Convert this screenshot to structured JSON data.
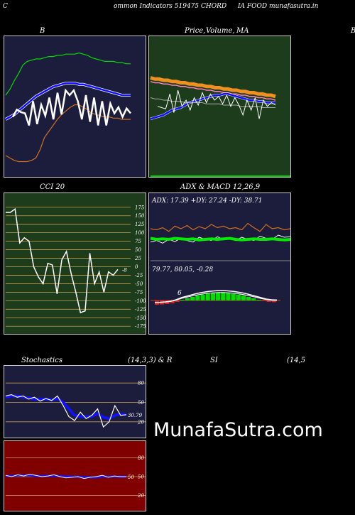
{
  "header": {
    "c": "C",
    "left": "ommon  Indicators 519475 CHORD",
    "right": "IA FOOD munafasutra.in"
  },
  "titles": {
    "bb": "B",
    "price_a": "Price,",
    "price_b": "Volume,",
    "price_c": "MA",
    "right_edge": "B",
    "cci": "CCI 20",
    "adx_macd": "ADX  & MACD 12,26,9",
    "stoch": "Stochastics",
    "stoch_params": "(14,3,3) & R",
    "si": "SI",
    "si_params": "(14,5"
  },
  "colors": {
    "navy": "#1c1c3c",
    "green_panel": "#1c3c1c",
    "dark_red": "#800000",
    "orange": "#d07020",
    "blue": "#1010ff",
    "lime": "#00ff00",
    "grid": "#c8a050"
  },
  "adx_text": "ADX: 17.39  +DY: 27.24  -DY: 38.71",
  "macd_text": "79.77,  80.05,  -0.28",
  "macd_marker": "6",
  "cci_last_label": "-8",
  "stoch_last_label": "30.79",
  "rsi_last_label": "50",
  "watermark": "MunafaSutra.com",
  "chart_data": [
    {
      "type": "line",
      "title": "B",
      "series": [
        {
          "values": [
            0.42,
            0.48,
            0.46,
            0.45,
            0.35,
            0.55,
            0.36,
            0.52,
            0.43,
            0.58,
            0.4,
            0.62,
            0.44,
            0.64,
            0.6,
            0.64,
            0.55,
            0.4,
            0.6,
            0.38,
            0.58,
            0.35,
            0.55,
            0.35,
            0.53,
            0.45,
            0.5,
            0.42,
            0.49,
            0.45
          ]
        },
        {
          "values": [
            0.4,
            0.42,
            0.44,
            0.47,
            0.5,
            0.53,
            0.56,
            0.59,
            0.61,
            0.63,
            0.65,
            0.67,
            0.68,
            0.69,
            0.7,
            0.7,
            0.7,
            0.69,
            0.69,
            0.68,
            0.67,
            0.66,
            0.65,
            0.64,
            0.63,
            0.62,
            0.61,
            0.6,
            0.6,
            0.6
          ]
        },
        {
          "values": [
            0.6,
            0.65,
            0.72,
            0.78,
            0.85,
            0.88,
            0.89,
            0.9,
            0.9,
            0.91,
            0.92,
            0.92,
            0.93,
            0.93,
            0.94,
            0.94,
            0.94,
            0.95,
            0.94,
            0.93,
            0.91,
            0.9,
            0.89,
            0.88,
            0.88,
            0.88,
            0.87,
            0.87,
            0.86,
            0.86
          ]
        },
        {
          "values": [
            0.1,
            0.08,
            0.06,
            0.05,
            0.05,
            0.05,
            0.06,
            0.08,
            0.15,
            0.25,
            0.3,
            0.35,
            0.4,
            0.44,
            0.47,
            0.5,
            0.52,
            0.52,
            0.5,
            0.48,
            0.45,
            0.44,
            0.43,
            0.42,
            0.42,
            0.41,
            0.41,
            0.4,
            0.4,
            0.4
          ]
        }
      ]
    },
    {
      "type": "line",
      "title": "Price, Volume, MA",
      "series": [
        {
          "values": [
            0.78,
            0.77,
            0.77,
            0.76,
            0.76,
            0.75,
            0.75,
            0.74,
            0.74,
            0.73,
            0.73,
            0.72,
            0.72,
            0.71,
            0.71,
            0.7,
            0.7,
            0.69,
            0.69,
            0.68,
            0.68,
            0.67,
            0.67,
            0.66,
            0.66,
            0.65,
            0.65,
            0.64,
            0.64,
            0.63
          ]
        },
        {
          "values": [
            0.75,
            0.74,
            0.74,
            0.73,
            0.73,
            0.72,
            0.72,
            0.71,
            0.71,
            0.7,
            0.7,
            0.69,
            0.69,
            0.68,
            0.68,
            0.67,
            0.67,
            0.66,
            0.66,
            0.65,
            0.65,
            0.64,
            0.64,
            0.63,
            0.63,
            0.62,
            0.62,
            0.61,
            0.61,
            0.6
          ]
        },
        {
          "values": [
            0.45,
            0.46,
            0.47,
            0.48,
            0.5,
            0.52,
            0.53,
            0.54,
            0.56,
            0.58,
            0.59,
            0.6,
            0.61,
            0.62,
            0.63,
            0.64,
            0.64,
            0.65,
            0.65,
            0.64,
            0.63,
            0.62,
            0.61,
            0.6,
            0.6,
            0.59,
            0.59,
            0.58,
            0.58,
            0.58
          ]
        },
        {
          "values": [
            0.62,
            0.61,
            0.61,
            0.6,
            0.6,
            0.59,
            0.59,
            0.59,
            0.58,
            0.58,
            0.58,
            0.58,
            0.58,
            0.57,
            0.57,
            0.57,
            0.57,
            0.56,
            0.56,
            0.56,
            0.56,
            0.55,
            0.55,
            0.55,
            0.55,
            0.55,
            0.54,
            0.54,
            0.54,
            0.54
          ]
        },
        {
          "values": [
            0.55,
            0.54,
            0.53,
            0.65,
            0.5,
            0.68,
            0.55,
            0.6,
            0.52,
            0.62,
            0.56,
            0.66,
            0.58,
            0.65,
            0.6,
            0.63,
            0.57,
            0.64,
            0.55,
            0.62,
            0.56,
            0.48,
            0.6,
            0.52,
            0.62,
            0.45,
            0.6,
            0.55,
            0.58,
            0.56
          ]
        }
      ]
    },
    {
      "type": "line",
      "title": "CCI 20",
      "yticks": [
        175,
        150,
        125,
        100,
        75,
        50,
        25,
        0,
        -25,
        -50,
        -75,
        -100,
        -125,
        -150,
        -175
      ],
      "ylim": [
        -185,
        185
      ],
      "series": [
        {
          "values": [
            160,
            160,
            170,
            70,
            85,
            75,
            0,
            -30,
            -50,
            10,
            5,
            -80,
            20,
            45,
            -20,
            -75,
            -135,
            -130,
            40,
            -50,
            -15,
            -75,
            -15,
            -25,
            -8
          ]
        }
      ]
    },
    {
      "type": "line",
      "title": "ADX & MACD 12,26,9",
      "series": [
        {
          "values": [
            0.42,
            0.4,
            0.41,
            0.4,
            0.42,
            0.41,
            0.4,
            0.41,
            0.39,
            0.4,
            0.41,
            0.4,
            0.41,
            0.42,
            0.4,
            0.39,
            0.4,
            0.41,
            0.4,
            0.4,
            0.41,
            0.4,
            0.39,
            0.4
          ]
        },
        {
          "values": [
            0.35,
            0.38,
            0.33,
            0.4,
            0.36,
            0.42,
            0.38,
            0.35,
            0.44,
            0.4,
            0.38,
            0.45,
            0.4,
            0.42,
            0.38,
            0.44,
            0.4,
            0.38,
            0.46,
            0.42,
            0.4,
            0.48,
            0.44,
            0.45
          ]
        },
        {
          "values": [
            0.6,
            0.58,
            0.62,
            0.55,
            0.65,
            0.6,
            0.66,
            0.58,
            0.64,
            0.6,
            0.68,
            0.62,
            0.65,
            0.6,
            0.62,
            0.58,
            0.7,
            0.62,
            0.55,
            0.68,
            0.6,
            0.62,
            0.58,
            0.6
          ]
        }
      ],
      "macd_histogram": [
        -0.3,
        -0.28,
        -0.25,
        -0.2,
        -0.1,
        0.05,
        0.15,
        0.25,
        0.35,
        0.42,
        0.48,
        0.52,
        0.55,
        0.55,
        0.52,
        0.48,
        0.42,
        0.35,
        0.25,
        0.15,
        0.05,
        -0.05,
        -0.1,
        -0.12
      ]
    },
    {
      "type": "line",
      "title": "Stochastics (14,3,3)",
      "yticks": [
        80,
        50,
        20
      ],
      "ylim": [
        0,
        100
      ],
      "series": [
        {
          "values": [
            60,
            62,
            58,
            60,
            55,
            58,
            52,
            56,
            53,
            60,
            45,
            28,
            22,
            35,
            25,
            30,
            40,
            12,
            20,
            45,
            30,
            31
          ]
        },
        {
          "values": [
            58,
            60,
            60,
            58,
            57,
            55,
            55,
            55,
            54,
            56,
            50,
            40,
            30,
            28,
            28,
            28,
            33,
            27,
            25,
            30,
            32,
            31
          ]
        }
      ]
    },
    {
      "type": "line",
      "title": "RSI (14,5)",
      "yticks": [
        80,
        50,
        20
      ],
      "ylim": [
        0,
        100
      ],
      "series": [
        {
          "values": [
            52,
            50,
            53,
            51,
            54,
            52,
            50,
            51,
            53,
            50,
            48,
            49,
            50,
            47,
            49,
            50,
            52,
            49,
            51,
            50,
            50
          ]
        },
        {
          "values": [
            51,
            51,
            52,
            52,
            52,
            51,
            51,
            51,
            51,
            51,
            50,
            50,
            50,
            49,
            49,
            49,
            50,
            50,
            50,
            50,
            50
          ]
        }
      ]
    }
  ]
}
